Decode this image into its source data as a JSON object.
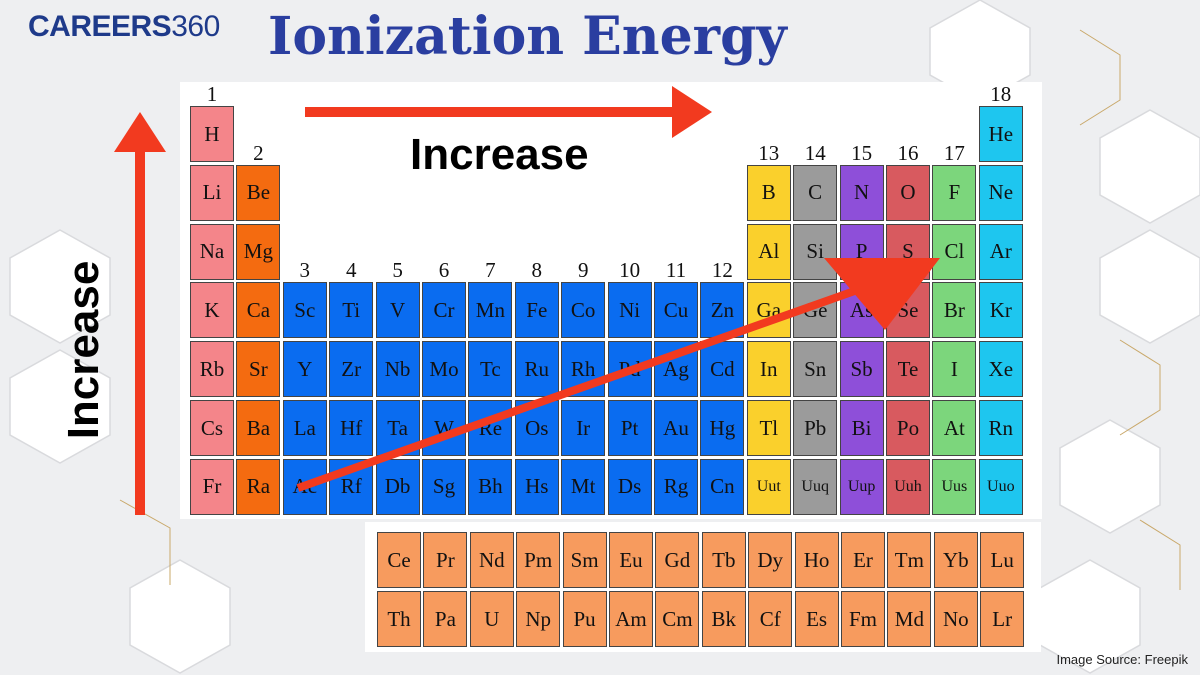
{
  "header": {
    "logo_word": "CAREERS",
    "logo_num": "360",
    "title": "Ionization Energy"
  },
  "labels": {
    "increase_top": "Increase",
    "increase_side": "Increase",
    "source": "Image Source:  Freepik"
  },
  "group_numbers": [
    "1",
    "2",
    "3",
    "4",
    "5",
    "6",
    "7",
    "8",
    "9",
    "10",
    "11",
    "12",
    "13",
    "14",
    "15",
    "16",
    "17",
    "18"
  ],
  "main_table": [
    {
      "s": "H",
      "c": "pink"
    },
    {
      "s": "He",
      "c": "cyan"
    },
    {
      "s": "Li",
      "c": "pink"
    },
    {
      "s": "Be",
      "c": "orange"
    },
    {
      "s": "B",
      "c": "yellow"
    },
    {
      "s": "C",
      "c": "gray"
    },
    {
      "s": "N",
      "c": "purple"
    },
    {
      "s": "O",
      "c": "red"
    },
    {
      "s": "F",
      "c": "green"
    },
    {
      "s": "Ne",
      "c": "cyan"
    },
    {
      "s": "Na",
      "c": "pink"
    },
    {
      "s": "Mg",
      "c": "orange"
    },
    {
      "s": "Al",
      "c": "yellow"
    },
    {
      "s": "Si",
      "c": "gray"
    },
    {
      "s": "P",
      "c": "purple"
    },
    {
      "s": "S",
      "c": "red"
    },
    {
      "s": "Cl",
      "c": "green"
    },
    {
      "s": "Ar",
      "c": "cyan"
    },
    {
      "s": "K",
      "c": "pink"
    },
    {
      "s": "Ca",
      "c": "orange"
    },
    {
      "s": "Sc",
      "c": "blue"
    },
    {
      "s": "Ti",
      "c": "blue"
    },
    {
      "s": "V",
      "c": "blue"
    },
    {
      "s": "Cr",
      "c": "blue"
    },
    {
      "s": "Mn",
      "c": "blue"
    },
    {
      "s": "Fe",
      "c": "blue"
    },
    {
      "s": "Co",
      "c": "blue"
    },
    {
      "s": "Ni",
      "c": "blue"
    },
    {
      "s": "Cu",
      "c": "blue"
    },
    {
      "s": "Zn",
      "c": "blue"
    },
    {
      "s": "Ga",
      "c": "yellow"
    },
    {
      "s": "Ge",
      "c": "gray"
    },
    {
      "s": "As",
      "c": "purple"
    },
    {
      "s": "Se",
      "c": "red"
    },
    {
      "s": "Br",
      "c": "green"
    },
    {
      "s": "Kr",
      "c": "cyan"
    },
    {
      "s": "Rb",
      "c": "pink"
    },
    {
      "s": "Sr",
      "c": "orange"
    },
    {
      "s": "Y",
      "c": "blue"
    },
    {
      "s": "Zr",
      "c": "blue"
    },
    {
      "s": "Nb",
      "c": "blue"
    },
    {
      "s": "Mo",
      "c": "blue"
    },
    {
      "s": "Tc",
      "c": "blue"
    },
    {
      "s": "Ru",
      "c": "blue"
    },
    {
      "s": "Rh",
      "c": "blue"
    },
    {
      "s": "Pd",
      "c": "blue"
    },
    {
      "s": "Ag",
      "c": "blue"
    },
    {
      "s": "Cd",
      "c": "blue"
    },
    {
      "s": "In",
      "c": "yellow"
    },
    {
      "s": "Sn",
      "c": "gray"
    },
    {
      "s": "Sb",
      "c": "purple"
    },
    {
      "s": "Te",
      "c": "red"
    },
    {
      "s": "I",
      "c": "green"
    },
    {
      "s": "Xe",
      "c": "cyan"
    },
    {
      "s": "Cs",
      "c": "pink"
    },
    {
      "s": "Ba",
      "c": "orange"
    },
    {
      "s": "La",
      "c": "blue"
    },
    {
      "s": "Hf",
      "c": "blue"
    },
    {
      "s": "Ta",
      "c": "blue"
    },
    {
      "s": "W",
      "c": "blue"
    },
    {
      "s": "Re",
      "c": "blue"
    },
    {
      "s": "Os",
      "c": "blue"
    },
    {
      "s": "Ir",
      "c": "blue"
    },
    {
      "s": "Pt",
      "c": "blue"
    },
    {
      "s": "Au",
      "c": "blue"
    },
    {
      "s": "Hg",
      "c": "blue"
    },
    {
      "s": "Tl",
      "c": "yellow"
    },
    {
      "s": "Pb",
      "c": "gray"
    },
    {
      "s": "Bi",
      "c": "purple"
    },
    {
      "s": "Po",
      "c": "red"
    },
    {
      "s": "At",
      "c": "green"
    },
    {
      "s": "Rn",
      "c": "cyan"
    },
    {
      "s": "Fr",
      "c": "pink"
    },
    {
      "s": "Ra",
      "c": "orange"
    },
    {
      "s": "Ac",
      "c": "blue"
    },
    {
      "s": "Rf",
      "c": "blue"
    },
    {
      "s": "Db",
      "c": "blue"
    },
    {
      "s": "Sg",
      "c": "blue"
    },
    {
      "s": "Bh",
      "c": "blue"
    },
    {
      "s": "Hs",
      "c": "blue"
    },
    {
      "s": "Mt",
      "c": "blue"
    },
    {
      "s": "Ds",
      "c": "blue"
    },
    {
      "s": "Rg",
      "c": "blue"
    },
    {
      "s": "Cn",
      "c": "blue"
    },
    {
      "s": "Uut",
      "c": "yellow"
    },
    {
      "s": "Uuq",
      "c": "gray"
    },
    {
      "s": "Uup",
      "c": "purple"
    },
    {
      "s": "Uuh",
      "c": "red"
    },
    {
      "s": "Uus",
      "c": "green"
    },
    {
      "s": "Uuo",
      "c": "cyan"
    }
  ],
  "lanthanides": [
    "Ce",
    "Pr",
    "Nd",
    "Pm",
    "Sm",
    "Eu",
    "Gd",
    "Tb",
    "Dy",
    "Ho",
    "Er",
    "Tm",
    "Yb",
    "Lu"
  ],
  "actinides": [
    "Th",
    "Pa",
    "U",
    "Np",
    "Pu",
    "Am",
    "Cm",
    "Bk",
    "Cf",
    "Es",
    "Fm",
    "Md",
    "No",
    "Lr"
  ],
  "colors": {
    "pink": "#f4858a",
    "orange": "#f46b10",
    "blue": "#0a6cf0",
    "yellow": "#fad02c",
    "gray": "#9b9b9b",
    "purple": "#8e4fd9",
    "red": "#d85a5f",
    "green": "#7cd67c",
    "cyan": "#1ec6ef",
    "f_block": "#f79b5e",
    "arrow": "#f23a1f",
    "title": "#2a3ea0",
    "logo": "#1e3a8a"
  }
}
